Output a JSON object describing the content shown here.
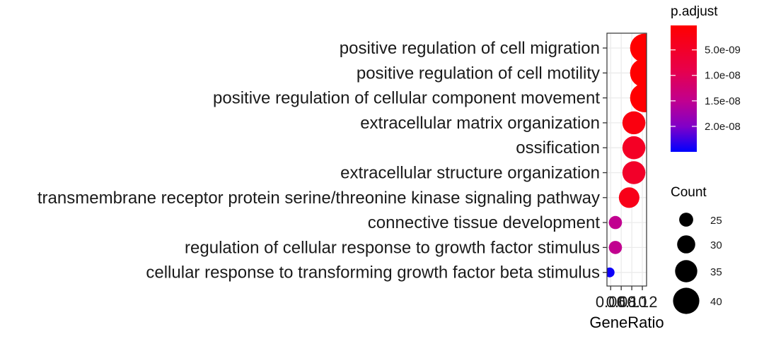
{
  "chart_data": {
    "type": "scatter",
    "xlabel": "GeneRatio",
    "x_ticks": [
      "0.06",
      "0.08",
      "0.10",
      "0.12"
    ],
    "x_tick_values": [
      0.06,
      0.08,
      0.1,
      0.12
    ],
    "xlim": [
      0.053,
      0.128
    ],
    "categories": [
      "positive regulation of cell migration",
      "positive regulation of cell motility",
      "positive regulation of cellular component movement",
      "extracellular matrix organization",
      "ossification",
      "extracellular structure organization",
      "transmembrane receptor protein serine/threonine kinase signaling pathway",
      "connective tissue development",
      "regulation of cellular response to growth factor stimulus",
      "cellular response to transforming growth factor beta stimulus"
    ],
    "points": [
      {
        "gene_ratio": 0.124,
        "count": 43,
        "p_adjust": 2e-10
      },
      {
        "gene_ratio": 0.124,
        "count": 43,
        "p_adjust": 2.5e-10
      },
      {
        "gene_ratio": 0.124,
        "count": 43,
        "p_adjust": 3e-10
      },
      {
        "gene_ratio": 0.104,
        "count": 36,
        "p_adjust": 2e-09
      },
      {
        "gene_ratio": 0.104,
        "count": 36,
        "p_adjust": 4.5e-09
      },
      {
        "gene_ratio": 0.104,
        "count": 36,
        "p_adjust": 5e-09
      },
      {
        "gene_ratio": 0.095,
        "count": 33,
        "p_adjust": 3e-09
      },
      {
        "gene_ratio": 0.069,
        "count": 24,
        "p_adjust": 1.5e-08
      },
      {
        "gene_ratio": 0.069,
        "count": 24,
        "p_adjust": 1.5e-08
      },
      {
        "gene_ratio": 0.058,
        "count": 20,
        "p_adjust": 2.45e-08
      }
    ],
    "color_legend": {
      "title": "p.adjust",
      "ticks": [
        "5.0e-09",
        "1.0e-08",
        "1.5e-08",
        "2.0e-08"
      ],
      "tick_values": [
        5e-09,
        1e-08,
        1.5e-08,
        2e-08
      ],
      "range": [
        2e-10,
        2.5e-08
      ],
      "low_color": "#ff0000",
      "high_color": "#0000ff"
    },
    "size_legend": {
      "title": "Count",
      "values": [
        25,
        30,
        35,
        40
      ],
      "labels": [
        "25",
        "30",
        "35",
        "40"
      ],
      "marker_color": "#000000"
    },
    "grid": true,
    "legend_position": "right"
  }
}
